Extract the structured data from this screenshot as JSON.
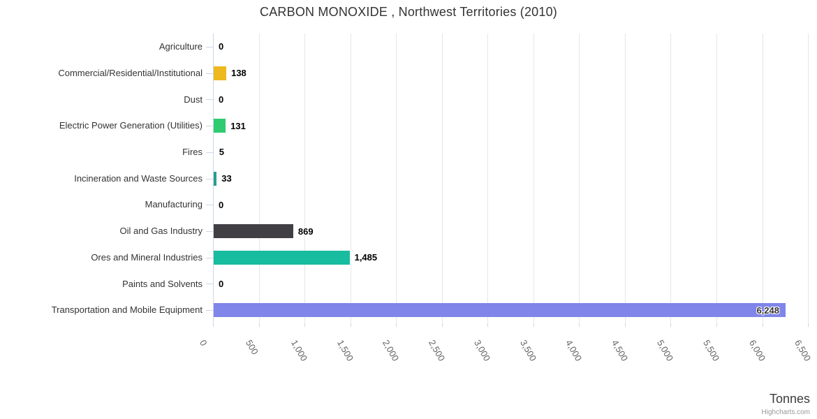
{
  "header": {
    "title": "CARBON MONOXIDE , Northwest Territories (2010)"
  },
  "credit": "Highcharts.com",
  "chart_data": {
    "type": "bar",
    "orientation": "horizontal",
    "title": "CARBON MONOXIDE , Northwest Territories (2010)",
    "xlabel": "Tonnes",
    "ylabel": "",
    "xlim": [
      0,
      6500
    ],
    "grid": true,
    "legend": false,
    "categories": [
      "Agriculture",
      "Commercial/Residential/Institutional",
      "Dust",
      "Electric Power Generation (Utilities)",
      "Fires",
      "Incineration and Waste Sources",
      "Manufacturing",
      "Oil and Gas Industry",
      "Ores and Mineral Industries",
      "Paints and Solvents",
      "Transportation and Mobile Equipment"
    ],
    "values": [
      0,
      138,
      0,
      131,
      5,
      33,
      0,
      869,
      1485,
      0,
      6248
    ],
    "value_labels": [
      "0",
      "138",
      "0",
      "131",
      "5",
      "33",
      "0",
      "869",
      "1,485",
      "0",
      "6,248"
    ],
    "bar_colors": [
      null,
      "#edb91e",
      null,
      "#2fcb6f",
      null,
      "#2a9d8f",
      null,
      "#413f44",
      "#18bc9e",
      null,
      "#8085e9"
    ],
    "x_ticks": [
      "0",
      "500",
      "1,000",
      "1,500",
      "2,000",
      "2,500",
      "3,000",
      "3,500",
      "4,000",
      "4,500",
      "5,000",
      "5,500",
      "6,000",
      "6,500"
    ],
    "inside_label_indices": [
      10
    ],
    "colors": {
      "gridline": "#e6e6e6",
      "axis": "#ccd6eb",
      "title_text": "#333333",
      "category_text": "#333333",
      "tick_text": "#666666",
      "value_text": "#000000",
      "axis_title_text": "#3c3c3c",
      "credit_text": "#999999"
    }
  }
}
